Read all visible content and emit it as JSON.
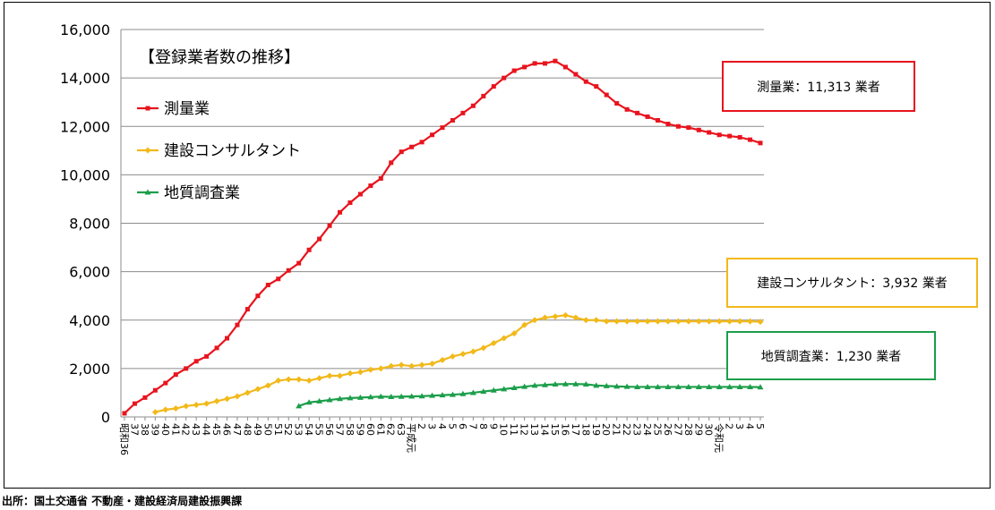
{
  "chart_data": {
    "type": "line",
    "title": "【登録業者数の推移】",
    "ylim": [
      0,
      16000
    ],
    "yticks": [
      "0",
      "2,000",
      "4,000",
      "6,000",
      "8,000",
      "10,000",
      "12,000",
      "14,000",
      "16,000"
    ],
    "ytick_values": [
      0,
      2000,
      4000,
      6000,
      8000,
      10000,
      12000,
      14000,
      16000
    ],
    "grid": true,
    "legend_position": "top-left, inside plot",
    "categories": [
      "昭和36",
      "37",
      "38",
      "39",
      "40",
      "41",
      "42",
      "43",
      "44",
      "45",
      "46",
      "47",
      "48",
      "49",
      "50",
      "51",
      "52",
      "53",
      "54",
      "55",
      "56",
      "57",
      "58",
      "59",
      "60",
      "61",
      "62",
      "63",
      "平成元",
      "2",
      "3",
      "4",
      "5",
      "6",
      "7",
      "8",
      "9",
      "10",
      "11",
      "12",
      "13",
      "14",
      "15",
      "16",
      "17",
      "18",
      "19",
      "20",
      "21",
      "22",
      "23",
      "24",
      "25",
      "26",
      "27",
      "28",
      "29",
      "30",
      "令和元",
      "2",
      "3",
      "4",
      "5"
    ],
    "xtick_labels": [
      "昭和36",
      "37",
      "38",
      "39",
      "40",
      "41",
      "42",
      "43",
      "44",
      "45",
      "46",
      "47",
      "48",
      "49",
      "50",
      "51",
      "52",
      "53",
      "54",
      "55",
      "56",
      "57",
      "58",
      "59",
      "60",
      "61",
      "62",
      "63",
      "平成元",
      "2",
      "3",
      "4",
      "5",
      "6",
      "7",
      "8",
      "9",
      "10",
      "11",
      "12",
      "13",
      "14",
      "15",
      "16",
      "17",
      "18",
      "19",
      "20",
      "21",
      "22",
      "23",
      "24",
      "25",
      "26",
      "27",
      "28",
      "29",
      "30",
      "令和元",
      "2",
      "3",
      "4",
      "5"
    ],
    "series": [
      {
        "name": "測量業",
        "color": "#e8141e",
        "marker": "square",
        "values": [
          150,
          550,
          800,
          1100,
          1400,
          1750,
          2000,
          2300,
          2500,
          2850,
          3250,
          3800,
          4450,
          5000,
          5450,
          5700,
          6050,
          6350,
          6900,
          7350,
          7900,
          8450,
          8850,
          9200,
          9550,
          9850,
          10500,
          10950,
          11150,
          11350,
          11650,
          11950,
          12250,
          12550,
          12850,
          13250,
          13650,
          14000,
          14300,
          14450,
          14600,
          14600,
          14700,
          14450,
          14150,
          13850,
          13650,
          13300,
          12950,
          12700,
          12550,
          12400,
          12250,
          12100,
          12000,
          11950,
          11850,
          11750,
          11650,
          11600,
          11550,
          11450,
          11313
        ]
      },
      {
        "name": "建設コンサルタント",
        "color": "#f2b91b",
        "marker": "diamond",
        "values": [
          null,
          null,
          null,
          200,
          300,
          350,
          450,
          500,
          550,
          650,
          750,
          850,
          1000,
          1150,
          1300,
          1500,
          1550,
          1550,
          1500,
          1600,
          1700,
          1700,
          1800,
          1850,
          1950,
          2000,
          2100,
          2150,
          2100,
          2150,
          2200,
          2350,
          2500,
          2600,
          2700,
          2850,
          3050,
          3250,
          3450,
          3800,
          4000,
          4100,
          4150,
          4200,
          4100,
          4000,
          4000,
          3950,
          3950,
          3950,
          3950,
          3950,
          3950,
          3950,
          3950,
          3950,
          3950,
          3950,
          3950,
          3950,
          3950,
          3950,
          3932
        ]
      },
      {
        "name": "地質調査業",
        "color": "#1c9e4a",
        "marker": "triangle",
        "values": [
          null,
          null,
          null,
          null,
          null,
          null,
          null,
          null,
          null,
          null,
          null,
          null,
          null,
          null,
          null,
          null,
          null,
          450,
          600,
          650,
          700,
          750,
          780,
          800,
          820,
          840,
          830,
          840,
          850,
          860,
          880,
          900,
          920,
          950,
          1000,
          1050,
          1100,
          1150,
          1200,
          1250,
          1300,
          1320,
          1350,
          1360,
          1360,
          1350,
          1300,
          1280,
          1260,
          1250,
          1240,
          1240,
          1240,
          1240,
          1240,
          1240,
          1240,
          1240,
          1240,
          1240,
          1240,
          1240,
          1230
        ]
      }
    ],
    "annotations": [
      {
        "series": "測量業",
        "text": "測量業：11,313 業者"
      },
      {
        "series": "建設コンサルタント",
        "text": "建設コンサルタント：3,932 業者"
      },
      {
        "series": "地質調査業",
        "text": "地質調査業：1,230 業者"
      }
    ]
  },
  "source_note": "出所：国土交通省 不動産・建設経済局建設振興課"
}
